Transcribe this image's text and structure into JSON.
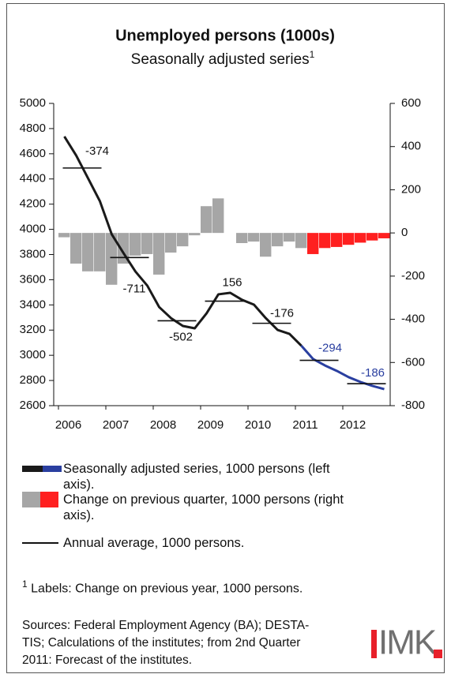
{
  "chart_data": {
    "type": "bar",
    "title": "Unemployed persons (1000s)",
    "subtitle": "Seasonally adjusted series",
    "subtitle_note_mark": "1",
    "categories": [
      "2006",
      null,
      null,
      null,
      "2007",
      null,
      null,
      null,
      "2008",
      null,
      null,
      null,
      "2009",
      null,
      null,
      null,
      "2010",
      null,
      null,
      null,
      "2011",
      null,
      null,
      null,
      "2012",
      null,
      null,
      null
    ],
    "series": [
      {
        "name": "Change on previous quarter, 1000 persons (right axis).",
        "type": "bar",
        "axis": "y2",
        "values": [
          -20,
          -142,
          -178,
          -178,
          -240,
          -142,
          -105,
          -98,
          -193,
          -91,
          -62,
          -11,
          124,
          160,
          0,
          -47,
          -40,
          -110,
          -62,
          -40,
          -70,
          -98,
          -70,
          -65,
          -55,
          -45,
          -35,
          -25
        ],
        "colors": [
          "#a6a6a6",
          "#a6a6a6",
          "#a6a6a6",
          "#a6a6a6",
          "#a6a6a6",
          "#a6a6a6",
          "#a6a6a6",
          "#a6a6a6",
          "#a6a6a6",
          "#a6a6a6",
          "#a6a6a6",
          "#a6a6a6",
          "#a6a6a6",
          "#a6a6a6",
          "#a6a6a6",
          "#a6a6a6",
          "#a6a6a6",
          "#a6a6a6",
          "#a6a6a6",
          "#a6a6a6",
          "#a6a6a6",
          "#ff2020",
          "#ff2020",
          "#ff2020",
          "#ff2020",
          "#ff2020",
          "#ff2020",
          "#ff2020"
        ]
      },
      {
        "name": "Seasonally adjusted series, 1000 persons (left axis).",
        "type": "line",
        "values": [
          4737,
          4586,
          4405,
          4223,
          3960,
          3810,
          3665,
          3553,
          3383,
          3295,
          3233,
          3214,
          3333,
          3484,
          3496,
          3440,
          3402,
          3295,
          3201,
          3170,
          3076,
          2970,
          2919,
          2876,
          2826,
          2788,
          2757,
          2731
        ],
        "colors": [
          "#1a1a1a",
          "#1a1a1a",
          "#1a1a1a",
          "#1a1a1a",
          "#1a1a1a",
          "#1a1a1a",
          "#1a1a1a",
          "#1a1a1a",
          "#1a1a1a",
          "#1a1a1a",
          "#1a1a1a",
          "#1a1a1a",
          "#1a1a1a",
          "#1a1a1a",
          "#1a1a1a",
          "#1a1a1a",
          "#1a1a1a",
          "#1a1a1a",
          "#1a1a1a",
          "#1a1a1a",
          "#1a1a1a",
          "#2a3fa0",
          "#2a3fa0",
          "#2a3fa0",
          "#2a3fa0",
          "#2a3fa0",
          "#2a3fa0",
          "#2a3fa0"
        ]
      }
    ],
    "annual_average": {
      "name": "Annual average, 1000 persons.",
      "color": "#111111",
      "values": [
        4487,
        3776,
        3274,
        3430,
        3254,
        2960,
        2774
      ],
      "changes": [
        -374,
        -711,
        -502,
        156,
        -176,
        -294,
        -186
      ],
      "change_colors": [
        "#111111",
        "#111111",
        "#111111",
        "#111111",
        "#111111",
        "#2a3fa0",
        "#2a3fa0"
      ]
    },
    "ylim": [
      2600,
      5000
    ],
    "yticks": [
      2600,
      2800,
      3000,
      3200,
      3400,
      3600,
      3800,
      4000,
      4200,
      4400,
      4600,
      4800,
      5000
    ],
    "y2lim": [
      -800,
      600
    ],
    "y2ticks": [
      -800,
      -600,
      -400,
      -200,
      0,
      200,
      400,
      600
    ],
    "footnote": {
      "mark": "1",
      "text": "Labels: Change on previous year, 1000 persons."
    },
    "sources": [
      "Sources: Federal Employment Agency (BA); DESTA-",
      "TIS; Calculations of the institutes; from 2nd Quarter",
      "2011: Forecast of the institutes."
    ],
    "logo": "IMK"
  }
}
